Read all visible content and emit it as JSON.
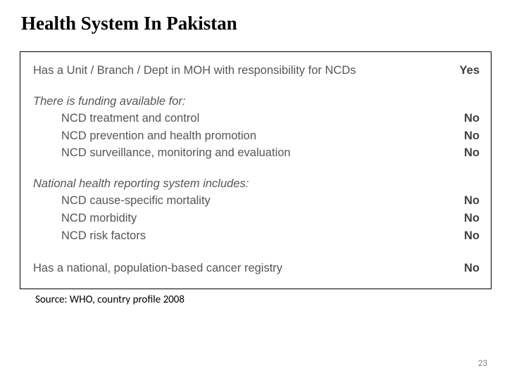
{
  "title": "Health System In Pakistan",
  "box": {
    "row1": {
      "label": "Has a Unit / Branch / Dept in MOH with responsibility for NCDs",
      "value": "Yes"
    },
    "funding": {
      "header": "There is funding available for:",
      "items": [
        {
          "label": "NCD treatment and control",
          "value": "No"
        },
        {
          "label": "NCD prevention and health promotion",
          "value": "No"
        },
        {
          "label": "NCD surveillance, monitoring and evaluation",
          "value": "No"
        }
      ]
    },
    "reporting": {
      "header": "National health reporting system includes:",
      "items": [
        {
          "label": "NCD cause-specific mortality",
          "value": "No"
        },
        {
          "label": "NCD morbidity",
          "value": "No"
        },
        {
          "label": "NCD risk factors",
          "value": "No"
        }
      ]
    },
    "registry": {
      "label": "Has a national, population-based cancer registry",
      "value": "No"
    }
  },
  "source": "Source: WHO, country profile 2008",
  "page_number": "23",
  "colors": {
    "text": "#555555",
    "value": "#3f3f3f",
    "border": "#000000",
    "bg": "#ffffff"
  },
  "fontsizes": {
    "title": 27,
    "body": 16.5,
    "source": 15,
    "page": 13
  }
}
